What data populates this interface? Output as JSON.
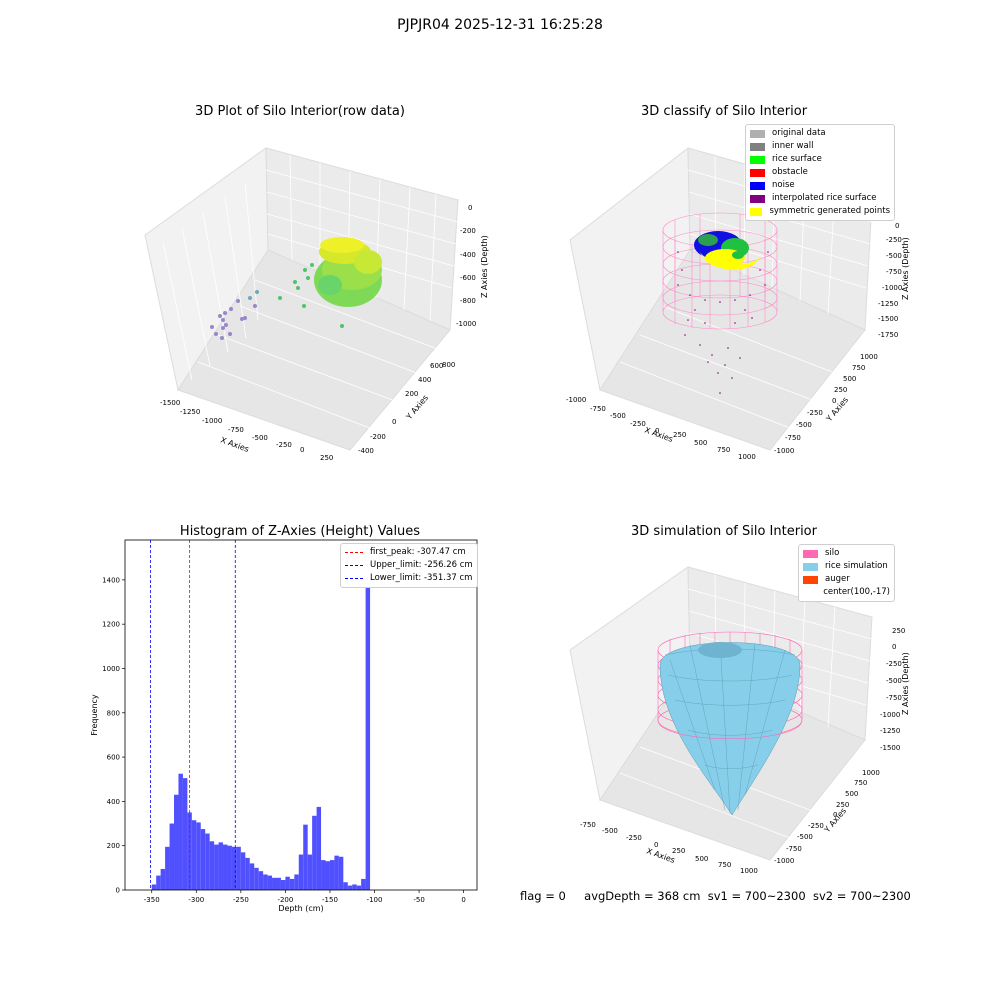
{
  "suptitle": "PJPJR04 2025-12-31 16:25:28",
  "plots": {
    "raw": {
      "title": "3D Plot of Silo Interior(row data)",
      "xlabel": "X Axies",
      "ylabel": "Y Axies",
      "zlabel": "Z Axies (Depth)",
      "xticks": [
        "-1500",
        "-1250",
        "-1000",
        "-750",
        "-500",
        "-250",
        "0",
        "250"
      ],
      "yticks": [
        "-400",
        "-200",
        "0",
        "200",
        "400",
        "600",
        "800"
      ],
      "zticks": [
        "0",
        "-200",
        "-400",
        "-600",
        "-800",
        "-1000"
      ]
    },
    "classify": {
      "title": "3D classify of Silo Interior",
      "xlabel": "X Axies",
      "ylabel": "Y Axies",
      "zlabel": "Z Axies (Depth)",
      "xticks": [
        "-1000",
        "-750",
        "-500",
        "-250",
        "0",
        "250",
        "500",
        "750",
        "1000"
      ],
      "yticks": [
        "-1000",
        "-750",
        "-500",
        "-250",
        "0",
        "250",
        "500",
        "750",
        "1000"
      ],
      "zticks": [
        "0",
        "-250",
        "-500",
        "-750",
        "-1000",
        "-1250",
        "-1500",
        "-1750"
      ],
      "legend": [
        {
          "label": "original data",
          "color": "#b0b0b0"
        },
        {
          "label": "inner wall",
          "color": "#808080"
        },
        {
          "label": "rice surface",
          "color": "#00ff00"
        },
        {
          "label": "obstacle",
          "color": "#ff0000"
        },
        {
          "label": "noise",
          "color": "#0000ff"
        },
        {
          "label": "interpolated rice surface",
          "color": "#800080"
        },
        {
          "label": "symmetric generated points",
          "color": "#ffff00"
        }
      ]
    },
    "simulation": {
      "title": "3D simulation of Silo Interior",
      "xlabel": "X Axies",
      "ylabel": "Y Axies",
      "zlabel": "Z Axies (Depth)",
      "xticks": [
        "-750",
        "-500",
        "-250",
        "0",
        "250",
        "500",
        "750",
        "1000"
      ],
      "yticks": [
        "-1000",
        "-750",
        "-500",
        "-250",
        "0",
        "250",
        "500",
        "750",
        "1000"
      ],
      "zticks": [
        "250",
        "0",
        "-250",
        "-500",
        "-750",
        "-1000",
        "-1250",
        "-1500"
      ],
      "legend": [
        {
          "label": "silo",
          "color": "#ff69b4"
        },
        {
          "label": "rice simulation",
          "color": "#87ceeb"
        },
        {
          "label": "auger",
          "color": "#ff4500"
        },
        {
          "label": "center(100,-17)",
          "color": ""
        }
      ]
    }
  },
  "chart_data": {
    "type": "bar",
    "title": "Histogram of Z-Axies (Height) Values",
    "xlabel": "Depth (cm)",
    "ylabel": "Frequency",
    "xlim": [
      -380,
      15
    ],
    "ylim": [
      0,
      1580
    ],
    "bin_width": 5,
    "bin_start": -350,
    "values": [
      25,
      65,
      95,
      195,
      300,
      430,
      525,
      505,
      350,
      315,
      305,
      275,
      255,
      220,
      205,
      215,
      205,
      200,
      195,
      195,
      170,
      145,
      120,
      100,
      85,
      70,
      65,
      55,
      55,
      45,
      60,
      50,
      70,
      160,
      295,
      160,
      335,
      375,
      135,
      130,
      135,
      155,
      150,
      35,
      20,
      25,
      20,
      50,
      1500
    ],
    "bar_color": "#5050ff",
    "xticks": [
      -350,
      -300,
      -250,
      -200,
      -150,
      -100,
      -50,
      0
    ],
    "yticks": [
      0,
      200,
      400,
      600,
      800,
      1000,
      1200,
      1400
    ],
    "vlines": [
      {
        "x": -307.47,
        "color": "#ff0000",
        "label": "first_peak: -307.47 cm"
      },
      {
        "x": -256.26,
        "color": "#0000ff",
        "label": "Upper_limit: -256.26 cm"
      },
      {
        "x": -351.37,
        "color": "#0000ff",
        "label": "Lower_limit: -351.37 cm"
      }
    ],
    "legend_position": "upper right"
  },
  "status": {
    "flag": "flag = 0",
    "avg": "avgDepth = 368 cm",
    "sv1": "sv1 = 700~2300",
    "sv2": "sv2 = 700~2300"
  }
}
